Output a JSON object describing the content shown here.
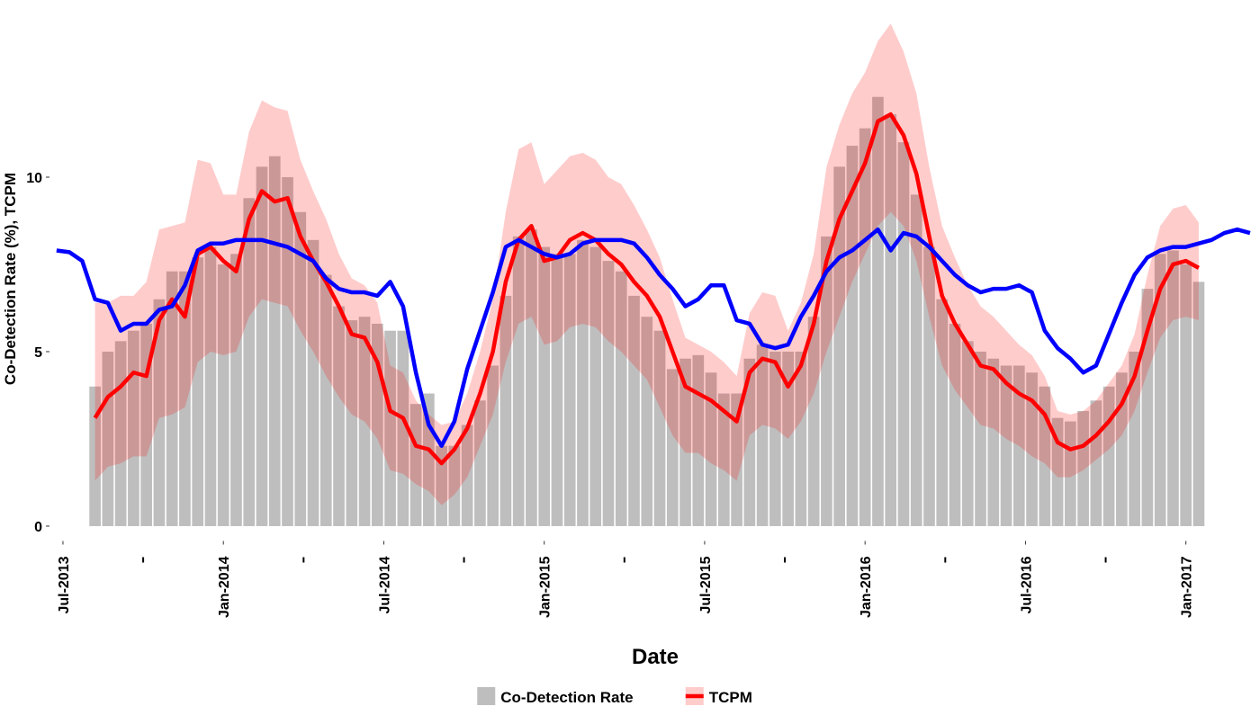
{
  "chart_data": {
    "type": "line",
    "xlabel": "Date",
    "ylabel": "Co-Detection Rate (%), TCPM",
    "xlim": [
      2013.46,
      2017.22
    ],
    "ylim": [
      -0.4,
      14.6
    ],
    "yticks": [
      0,
      5,
      10
    ],
    "xticks": [
      {
        "value": 2013.5,
        "label": "Jul-2013"
      },
      {
        "value": 2014,
        "label": "Jan-2014"
      },
      {
        "value": 2014.5,
        "label": "Jul-2014"
      },
      {
        "value": 2015,
        "label": "Jan-2015"
      },
      {
        "value": 2015.5,
        "label": "Jul-2015"
      },
      {
        "value": 2016,
        "label": "Jan-2016"
      },
      {
        "value": 2016.5,
        "label": "Jul-2016"
      },
      {
        "value": 2017,
        "label": "Jan-2017"
      }
    ],
    "xminorticks": [
      2013.75,
      2014.25,
      2014.75,
      2015.25,
      2015.75,
      2016.25,
      2016.75
    ],
    "legend": "bottom",
    "x": [
      2013.6,
      2013.64,
      2013.68,
      2013.72,
      2013.76,
      2013.8,
      2013.84,
      2013.88,
      2013.92,
      2013.96,
      2014,
      2014.04,
      2014.08,
      2014.12,
      2014.16,
      2014.2,
      2014.24,
      2014.28,
      2014.32,
      2014.36,
      2014.4,
      2014.44,
      2014.48,
      2014.52,
      2014.56,
      2014.6,
      2014.64,
      2014.68,
      2014.72,
      2014.76,
      2014.8,
      2014.84,
      2014.88,
      2014.92,
      2014.96,
      2015,
      2015.04,
      2015.08,
      2015.12,
      2015.16,
      2015.2,
      2015.24,
      2015.28,
      2015.32,
      2015.36,
      2015.4,
      2015.44,
      2015.48,
      2015.52,
      2015.56,
      2015.6,
      2015.64,
      2015.68,
      2015.72,
      2015.76,
      2015.8,
      2015.84,
      2015.88,
      2015.92,
      2015.96,
      2016,
      2016.04,
      2016.08,
      2016.12,
      2016.16,
      2016.2,
      2016.24,
      2016.28,
      2016.32,
      2016.36,
      2016.4,
      2016.44,
      2016.48,
      2016.52,
      2016.56,
      2016.6,
      2016.64,
      2016.68,
      2016.72,
      2016.76,
      2016.8,
      2016.84,
      2016.88,
      2016.92,
      2016.96,
      2017,
      2017.04
    ],
    "series": [
      {
        "name": "Co-Detection Rate",
        "type": "bar",
        "color": "#bebebe",
        "values": [
          4.0,
          5.0,
          5.3,
          5.6,
          5.8,
          6.5,
          7.3,
          7.3,
          7.7,
          8.0,
          7.5,
          7.8,
          9.4,
          10.3,
          10.6,
          10.0,
          9.0,
          8.2,
          7.2,
          6.3,
          5.9,
          6.0,
          5.8,
          5.6,
          5.6,
          3.5,
          3.8,
          2.3,
          2.3,
          2.9,
          3.6,
          4.6,
          6.6,
          8.3,
          8.5,
          8.0,
          7.8,
          7.8,
          8.2,
          8.0,
          7.6,
          7.3,
          6.6,
          6.0,
          5.6,
          4.5,
          4.8,
          4.9,
          4.4,
          3.8,
          3.8,
          4.8,
          5.2,
          5.0,
          5.0,
          5.0,
          6.0,
          8.3,
          10.3,
          10.9,
          11.4,
          12.3,
          11.8,
          11.0,
          9.5,
          8.0,
          6.5,
          5.8,
          5.3,
          5.0,
          4.8,
          4.6,
          4.6,
          4.4,
          4.0,
          3.1,
          3.0,
          3.3,
          3.6,
          4.0,
          4.4,
          5.0,
          6.8,
          7.8,
          7.9,
          7.5,
          7.0
        ]
      },
      {
        "name": "TCPM",
        "type": "line",
        "color": "#ff0000",
        "band_color": "#ff0000",
        "band_opacity": 0.2,
        "values": [
          3.1,
          3.7,
          4.0,
          4.4,
          4.3,
          5.9,
          6.5,
          6.0,
          7.8,
          8.0,
          7.6,
          7.3,
          8.8,
          9.6,
          9.3,
          9.4,
          8.3,
          7.6,
          7.0,
          6.3,
          5.5,
          5.4,
          4.7,
          3.3,
          3.1,
          2.3,
          2.2,
          1.8,
          2.2,
          2.8,
          3.8,
          5.0,
          7.0,
          8.2,
          8.6,
          7.6,
          7.7,
          8.2,
          8.4,
          8.2,
          7.8,
          7.5,
          7.0,
          6.6,
          6.0,
          5.0,
          4.0,
          3.8,
          3.6,
          3.3,
          3.0,
          4.4,
          4.8,
          4.7,
          4.0,
          4.6,
          5.8,
          7.6,
          8.8,
          9.6,
          10.4,
          11.6,
          11.8,
          11.2,
          10.1,
          8.3,
          6.6,
          5.8,
          5.2,
          4.6,
          4.5,
          4.1,
          3.8,
          3.6,
          3.2,
          2.4,
          2.2,
          2.3,
          2.6,
          3.0,
          3.5,
          4.3,
          5.6,
          6.8,
          7.5,
          7.6,
          7.4
        ],
        "band_lower": [
          1.3,
          1.7,
          1.8,
          2.0,
          2.0,
          3.1,
          3.2,
          3.4,
          4.7,
          5.0,
          4.9,
          5.0,
          6.0,
          6.5,
          6.4,
          6.3,
          5.6,
          5.0,
          4.3,
          3.7,
          3.2,
          3.0,
          2.5,
          1.6,
          1.5,
          1.2,
          1.0,
          0.6,
          0.9,
          1.4,
          2.3,
          3.2,
          4.7,
          5.8,
          6.0,
          5.2,
          5.3,
          5.7,
          5.8,
          5.7,
          5.3,
          5.0,
          4.6,
          4.2,
          3.4,
          2.6,
          2.1,
          2.1,
          1.8,
          1.6,
          1.3,
          2.6,
          2.9,
          2.8,
          2.5,
          3.0,
          3.8,
          5.0,
          6.0,
          7.0,
          7.8,
          8.6,
          9.0,
          8.6,
          7.6,
          6.0,
          4.6,
          3.9,
          3.4,
          2.9,
          2.8,
          2.5,
          2.3,
          2.0,
          1.8,
          1.4,
          1.4,
          1.6,
          1.9,
          2.2,
          2.6,
          3.3,
          4.4,
          5.4,
          5.9,
          6.0,
          5.9
        ],
        "band_upper": [
          6.4,
          6.4,
          6.6,
          6.6,
          7.0,
          8.5,
          8.6,
          8.7,
          10.5,
          10.4,
          9.5,
          9.5,
          11.3,
          12.2,
          12.0,
          11.9,
          10.5,
          9.6,
          8.8,
          7.8,
          7.1,
          6.9,
          6.4,
          4.6,
          4.4,
          3.6,
          3.2,
          2.9,
          3.0,
          3.8,
          5.0,
          6.5,
          9.0,
          10.8,
          11.0,
          9.8,
          10.2,
          10.6,
          10.7,
          10.5,
          10.0,
          9.8,
          9.2,
          8.5,
          7.7,
          6.5,
          5.4,
          5.2,
          5.0,
          4.7,
          4.3,
          6.1,
          6.7,
          6.6,
          5.6,
          6.4,
          7.8,
          10.3,
          11.5,
          12.4,
          13.0,
          13.9,
          14.4,
          13.6,
          12.4,
          10.3,
          8.6,
          7.7,
          6.9,
          6.3,
          6.0,
          5.6,
          5.2,
          4.9,
          4.3,
          3.3,
          3.2,
          3.3,
          3.6,
          4.1,
          4.6,
          5.5,
          7.2,
          8.6,
          9.1,
          9.2,
          8.7
        ]
      },
      {
        "type": "line",
        "color": "#0000ff",
        "x": [
          2013.48,
          2013.52,
          2013.56,
          2013.6,
          2013.64,
          2013.68,
          2013.72,
          2013.76,
          2013.8,
          2013.84,
          2013.88,
          2013.92,
          2013.96,
          2014,
          2014.04,
          2014.08,
          2014.12,
          2014.16,
          2014.2,
          2014.24,
          2014.28,
          2014.32,
          2014.36,
          2014.4,
          2014.44,
          2014.48,
          2014.52,
          2014.56,
          2014.6,
          2014.64,
          2014.68,
          2014.72,
          2014.76,
          2014.8,
          2014.84,
          2014.88,
          2014.92,
          2014.96,
          2015,
          2015.04,
          2015.08,
          2015.12,
          2015.16,
          2015.2,
          2015.24,
          2015.28,
          2015.32,
          2015.36,
          2015.4,
          2015.44,
          2015.48,
          2015.52,
          2015.56,
          2015.6,
          2015.64,
          2015.68,
          2015.72,
          2015.76,
          2015.8,
          2015.84,
          2015.88,
          2015.92,
          2015.96,
          2016,
          2016.04,
          2016.08,
          2016.12,
          2016.16,
          2016.2,
          2016.24,
          2016.28,
          2016.32,
          2016.36,
          2016.4,
          2016.44,
          2016.48,
          2016.52,
          2016.56,
          2016.6,
          2016.64,
          2016.68,
          2016.72,
          2016.76,
          2016.8,
          2016.84,
          2016.88,
          2016.92,
          2016.96,
          2017,
          2017.04,
          2017.08,
          2017.12,
          2017.16,
          2017.2
        ],
        "values": [
          7.9,
          7.85,
          7.6,
          6.5,
          6.4,
          5.6,
          5.8,
          5.8,
          6.2,
          6.3,
          6.9,
          7.9,
          8.1,
          8.1,
          8.2,
          8.2,
          8.2,
          8.1,
          8.0,
          7.8,
          7.6,
          7.1,
          6.8,
          6.7,
          6.7,
          6.6,
          7.0,
          6.3,
          4.4,
          2.9,
          2.3,
          3.0,
          4.5,
          5.6,
          6.7,
          8.0,
          8.2,
          8.0,
          7.8,
          7.7,
          7.8,
          8.1,
          8.2,
          8.2,
          8.2,
          8.1,
          7.7,
          7.2,
          6.8,
          6.3,
          6.5,
          6.9,
          6.9,
          5.9,
          5.8,
          5.2,
          5.1,
          5.2,
          6.0,
          6.6,
          7.3,
          7.7,
          7.9,
          8.2,
          8.5,
          7.9,
          8.4,
          8.3,
          8.0,
          7.6,
          7.2,
          6.9,
          6.7,
          6.8,
          6.8,
          6.9,
          6.7,
          5.6,
          5.1,
          4.8,
          4.4,
          4.6,
          5.5,
          6.4,
          7.2,
          7.7,
          7.9,
          8.0,
          8.0,
          8.1,
          8.2,
          8.4,
          8.5,
          8.4
        ]
      }
    ]
  }
}
